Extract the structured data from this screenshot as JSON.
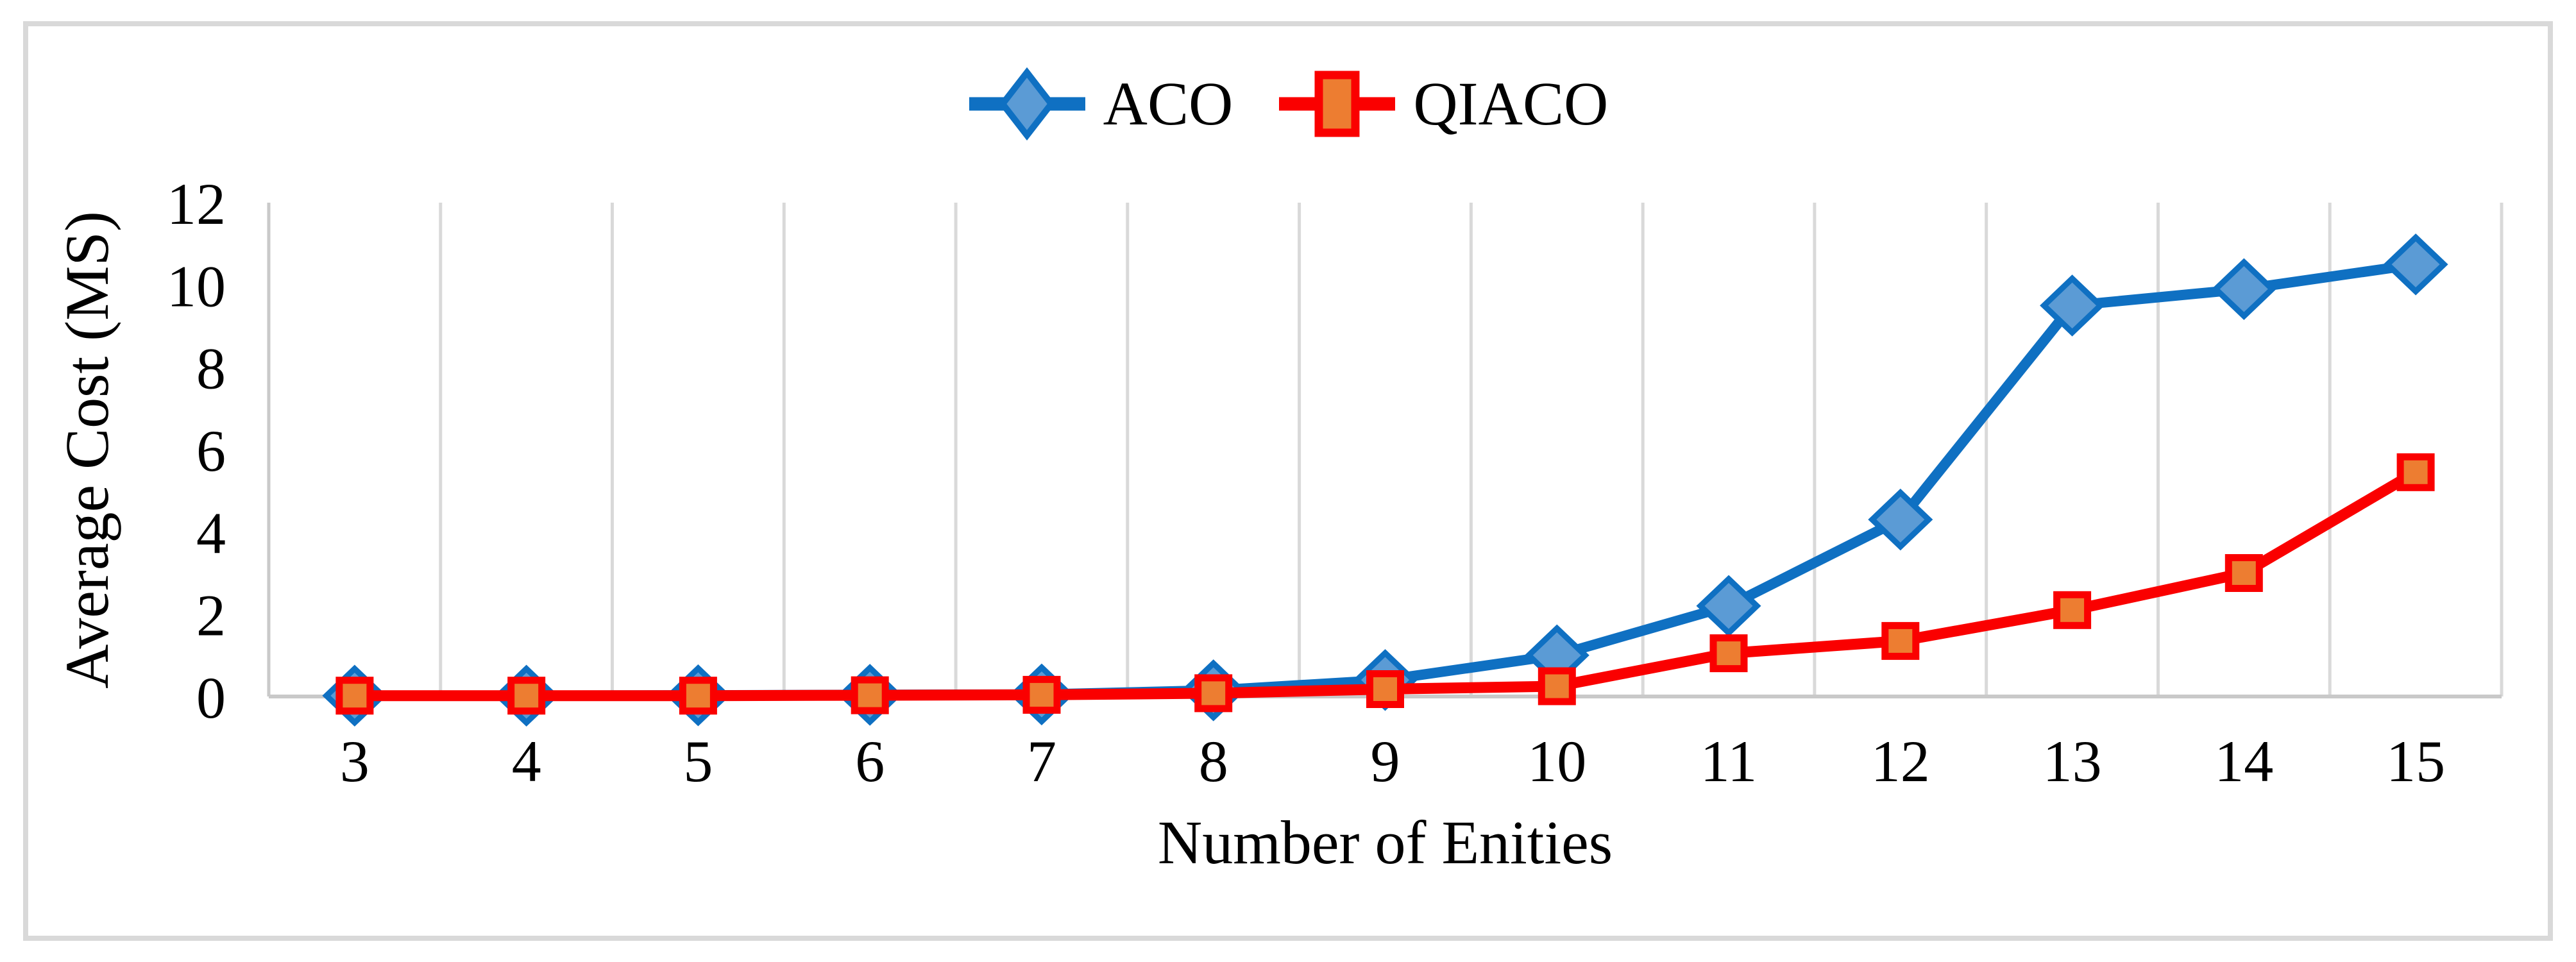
{
  "chart_data": {
    "type": "line",
    "x": [
      3,
      4,
      5,
      6,
      7,
      8,
      9,
      10,
      11,
      12,
      13,
      14,
      15
    ],
    "series": [
      {
        "name": "ACO",
        "marker": "diamond",
        "line_color": "#0F70C2",
        "marker_fill": "#5B9BD5",
        "values": [
          0.02,
          0.02,
          0.03,
          0.04,
          0.05,
          0.15,
          0.4,
          1.0,
          2.2,
          4.3,
          9.5,
          9.9,
          10.5
        ]
      },
      {
        "name": "QIACO",
        "marker": "square",
        "line_color": "#FA0000",
        "marker_fill": "#ED7D31",
        "values": [
          0.02,
          0.02,
          0.02,
          0.03,
          0.04,
          0.08,
          0.18,
          0.25,
          1.05,
          1.35,
          2.1,
          3.0,
          5.45
        ]
      }
    ],
    "title": "",
    "xlabel": "Number of Enities",
    "ylabel": "Average Cost (MS)",
    "ylim": [
      0,
      12
    ],
    "yticks": [
      0,
      2,
      4,
      6,
      8,
      10,
      12
    ],
    "legend_position": "top-center",
    "gridlines": "vertical-major",
    "gridline_color": "#D9D9D9",
    "axis_line_color": "#C9C9C9",
    "frame_border_color": "#D9D9D9",
    "text_color": "#000000"
  }
}
